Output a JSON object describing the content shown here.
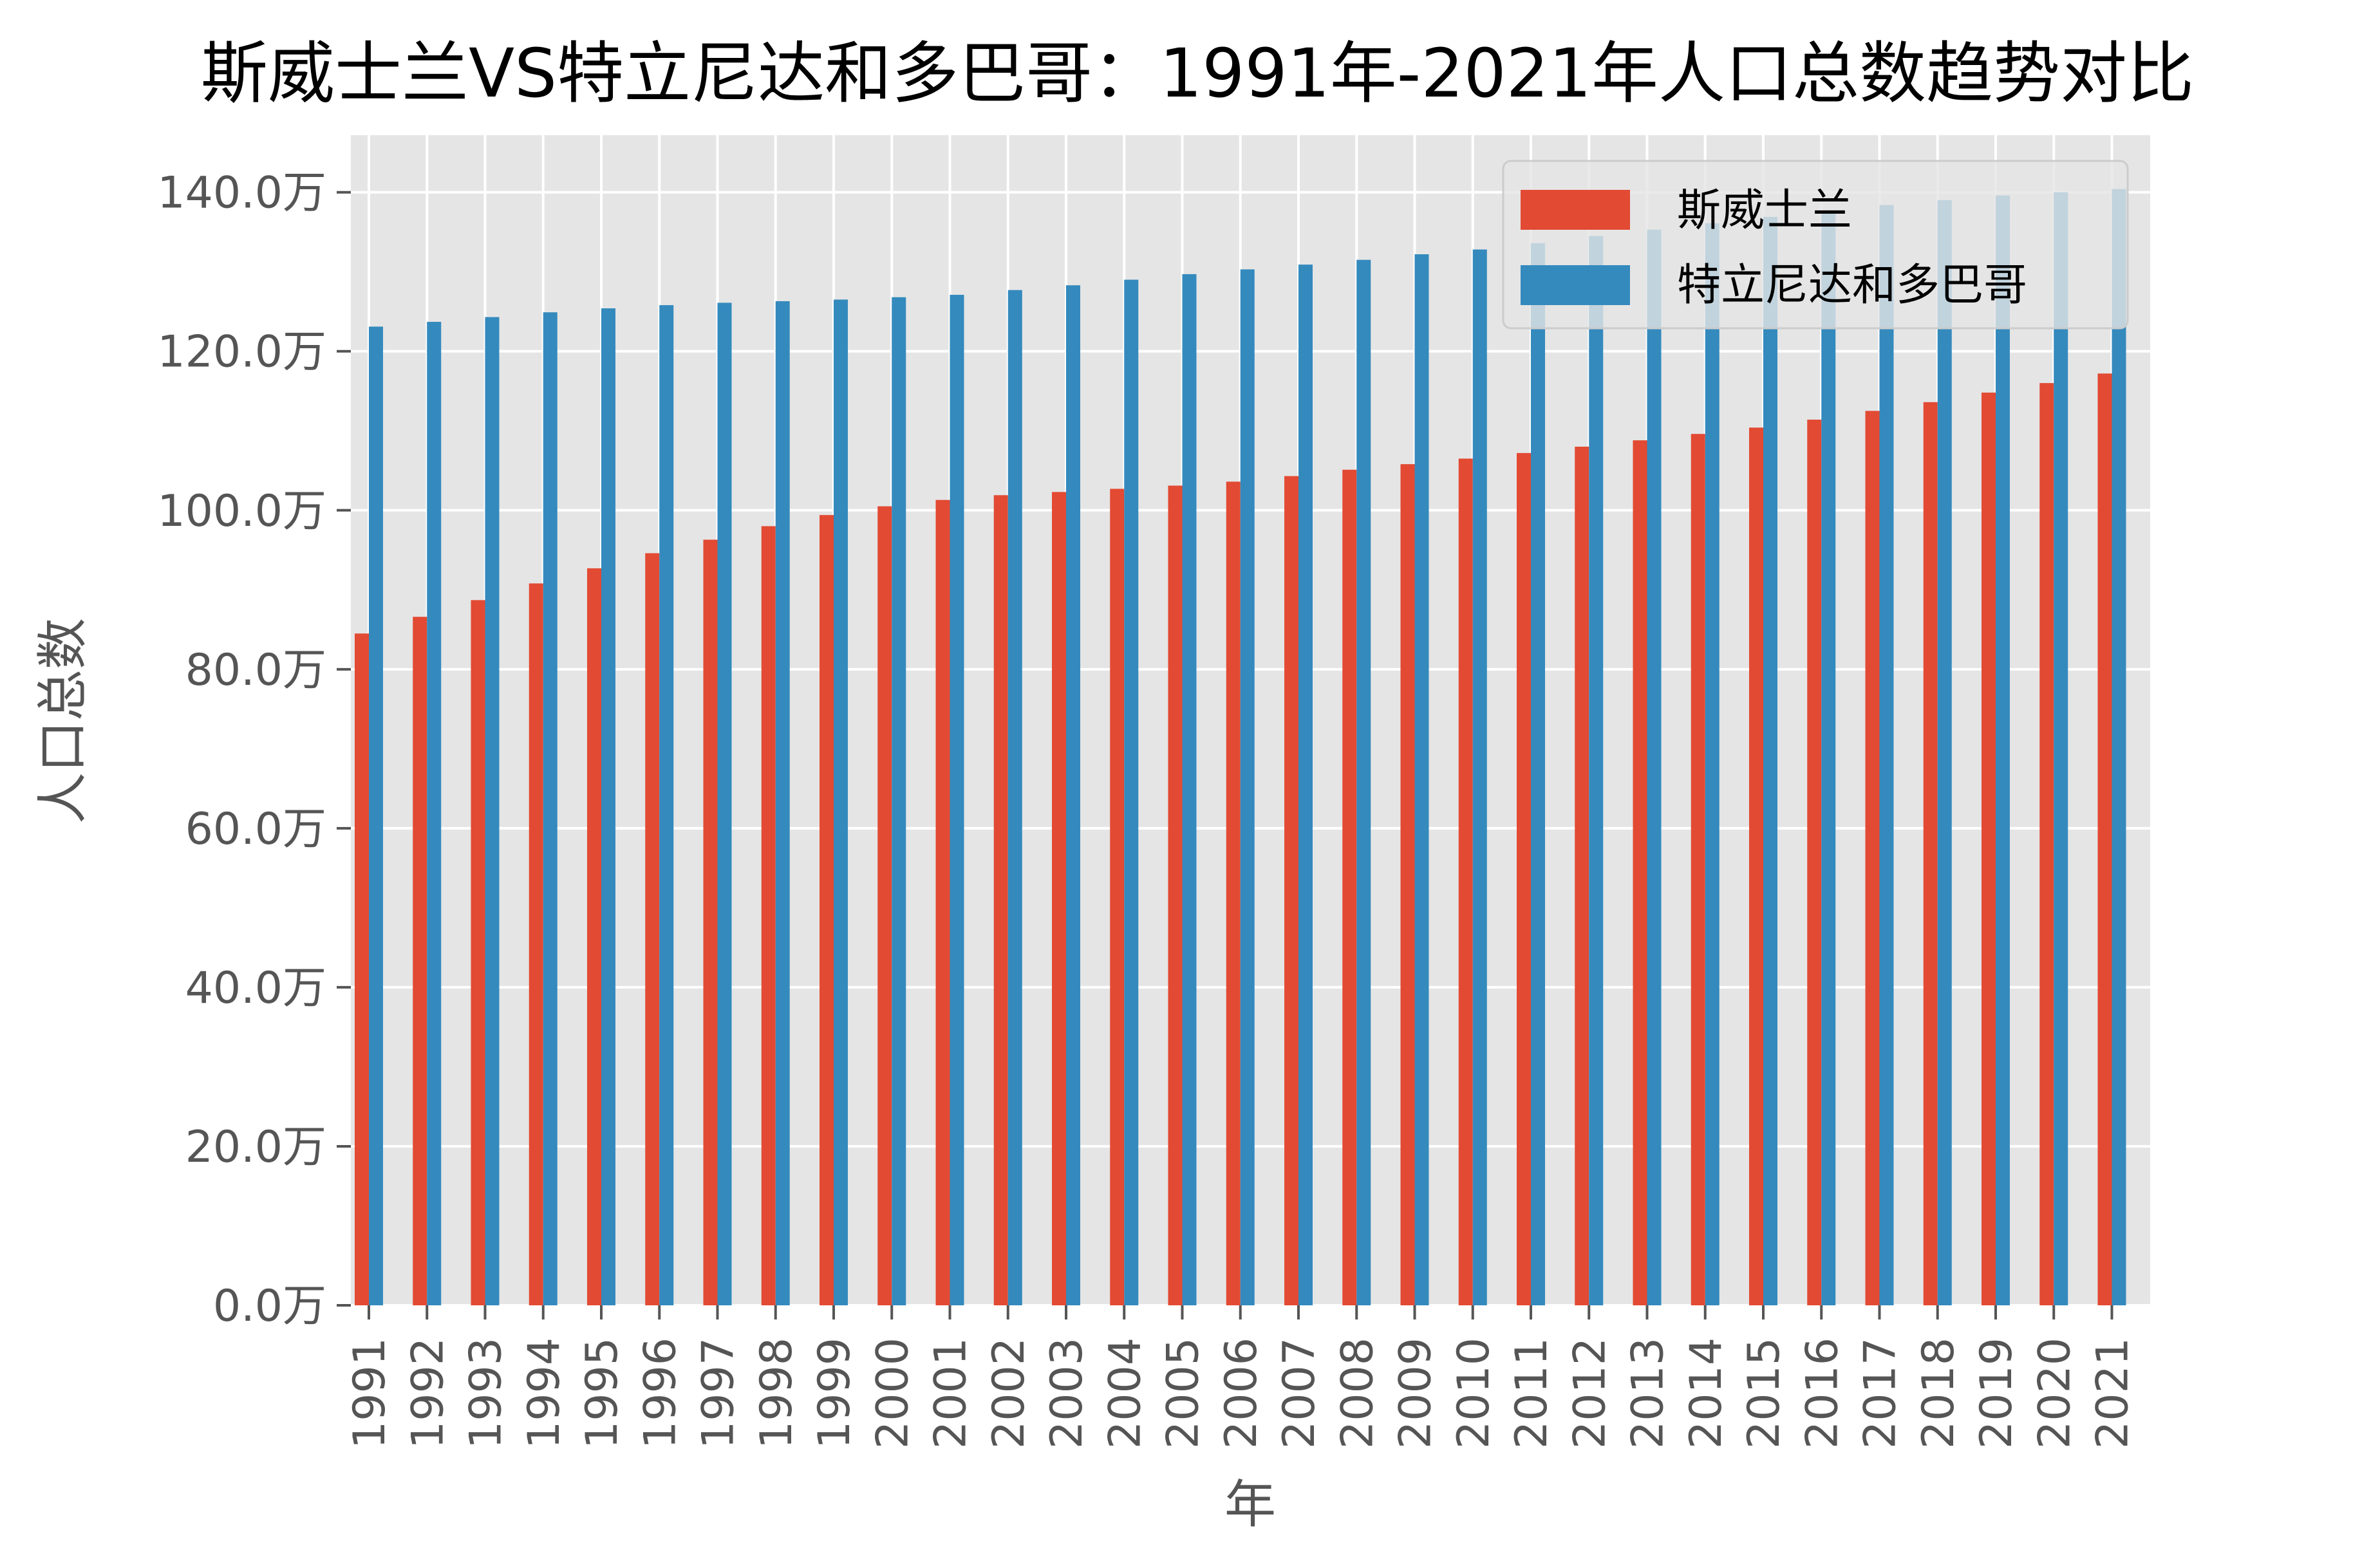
{
  "chart_data": {
    "type": "bar",
    "title": "斯威士兰VS特立尼达和多巴哥：1991年-2021年人口总数趋势对比",
    "xlabel": "年",
    "ylabel": "人口总数",
    "ylim": [
      0,
      1470000
    ],
    "yticks": [
      0,
      200000,
      400000,
      600000,
      800000,
      1000000,
      1200000,
      1400000
    ],
    "ytick_labels": [
      "0.0万",
      "20.0万",
      "40.0万",
      "60.0万",
      "80.0万",
      "100.0万",
      "120.0万",
      "140.0万"
    ],
    "categories": [
      "1991",
      "1992",
      "1993",
      "1994",
      "1995",
      "1996",
      "1997",
      "1998",
      "1999",
      "2000",
      "2001",
      "2002",
      "2003",
      "2004",
      "2005",
      "2006",
      "2007",
      "2008",
      "2009",
      "2010",
      "2011",
      "2012",
      "2013",
      "2014",
      "2015",
      "2016",
      "2017",
      "2018",
      "2019",
      "2020",
      "2021"
    ],
    "series": [
      {
        "name": "斯威士兰",
        "color": "#E24A33",
        "values": [
          845000,
          866000,
          887000,
          908000,
          927000,
          946000,
          963000,
          980000,
          994000,
          1005000,
          1013000,
          1019000,
          1023000,
          1027000,
          1031000,
          1036000,
          1043000,
          1051000,
          1058000,
          1065000,
          1072000,
          1080000,
          1088000,
          1096000,
          1104000,
          1114000,
          1125000,
          1136000,
          1148000,
          1160000,
          1172000
        ]
      },
      {
        "name": "特立尼达和多巴哥",
        "color": "#348ABD",
        "values": [
          1231000,
          1237000,
          1243000,
          1249000,
          1254000,
          1258000,
          1261000,
          1263000,
          1265000,
          1268000,
          1271000,
          1277000,
          1283000,
          1290000,
          1297000,
          1303000,
          1309000,
          1315000,
          1322000,
          1328000,
          1336000,
          1345000,
          1353000,
          1361000,
          1369000,
          1376000,
          1384000,
          1390000,
          1396000,
          1400000,
          1404000
        ]
      }
    ],
    "grid": true,
    "legend_position": "top-right"
  }
}
